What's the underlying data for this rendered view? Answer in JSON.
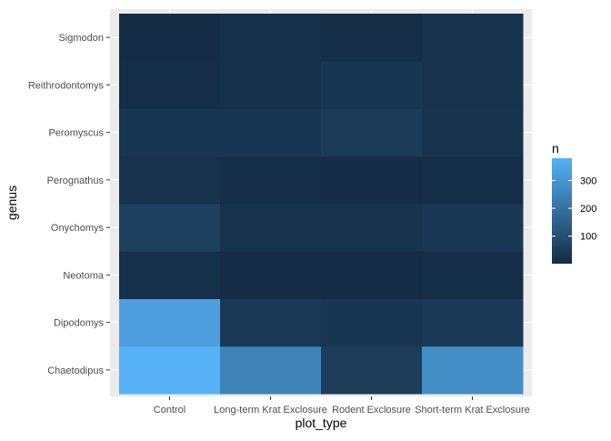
{
  "chart_data": {
    "type": "heatmap",
    "xlabel": "plot_type",
    "ylabel": "genus",
    "x_categories": [
      "Control",
      "Long-term Krat Exclosure",
      "Rodent Exclosure",
      "Short-term Krat Exclosure"
    ],
    "y_categories": [
      "Chaetodipus",
      "Dipodomys",
      "Neotoma",
      "Onychomys",
      "Perognathus",
      "Peromyscus",
      "Reithrodontomys",
      "Sigmodon"
    ],
    "values": [
      [
        380,
        250,
        50,
        280
      ],
      [
        330,
        40,
        30,
        40
      ],
      [
        15,
        5,
        5,
        10
      ],
      [
        60,
        20,
        25,
        35
      ],
      [
        20,
        10,
        5,
        10
      ],
      [
        30,
        30,
        45,
        25
      ],
      [
        10,
        15,
        30,
        20
      ],
      [
        5,
        15,
        10,
        20
      ]
    ],
    "legend": {
      "title": "n",
      "ticks": [
        100,
        200,
        300
      ],
      "range": [
        1,
        380
      ],
      "low_color": "#132b43",
      "high_color": "#56b1f7",
      "placement": "right"
    },
    "panel_background": "#ebebeb",
    "grid_color": "#ffffff",
    "grid": true
  }
}
